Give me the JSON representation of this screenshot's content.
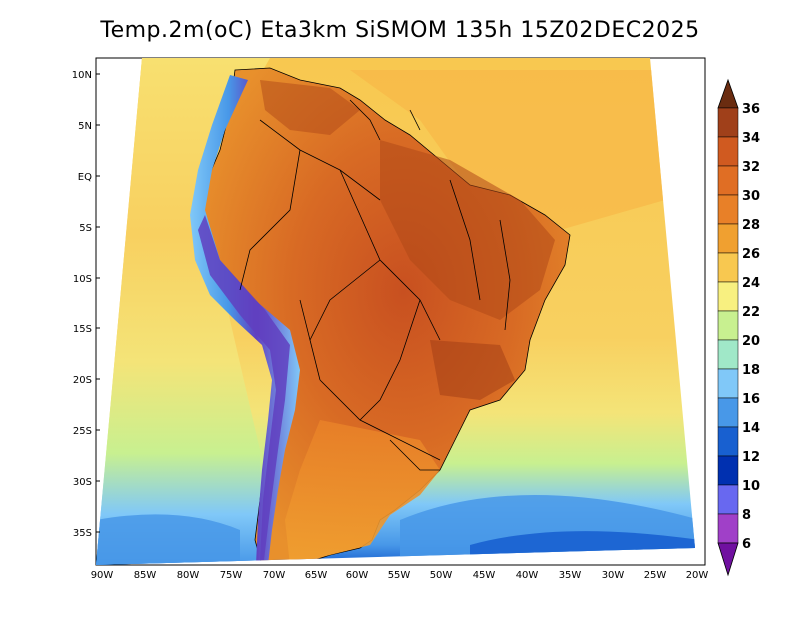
{
  "title": "Temp.2m(oC) Eta3km SiSMOM 135h 15Z02DEC2025",
  "map": {
    "lon_ticks": [
      "90W",
      "85W",
      "80W",
      "75W",
      "70W",
      "65W",
      "60W",
      "55W",
      "50W",
      "45W",
      "40W",
      "35W",
      "30W",
      "25W",
      "20W"
    ],
    "lat_ticks": [
      "10N",
      "5N",
      "EQ",
      "5S",
      "10S",
      "15S",
      "20S",
      "25S",
      "30S",
      "35S"
    ],
    "colors": {
      "ocean_warm": "#F8C850",
      "ocean_mid": "#F4E070",
      "ocean_cool": "#C8F090",
      "ocean_cold": "#80C8F8",
      "ocean_colder": "#4898E8",
      "land_hot": "#D8601C",
      "land_very_hot": "#B04818",
      "andes_cold": "#6040C0",
      "border": "#000000"
    }
  },
  "colorbar": {
    "levels": [
      "36",
      "34",
      "32",
      "30",
      "28",
      "26",
      "24",
      "22",
      "20",
      "18",
      "16",
      "14",
      "12",
      "10",
      "8",
      "6"
    ],
    "colors": [
      "#6A2C10",
      "#A0401A",
      "#D05A20",
      "#E88028",
      "#F0A030",
      "#F8C850",
      "#F8F080",
      "#C8F090",
      "#A0E8C8",
      "#80C8F8",
      "#4898E8",
      "#1860D0",
      "#0030B0",
      "#6868F0",
      "#A040C8",
      "#7010A0"
    ]
  }
}
